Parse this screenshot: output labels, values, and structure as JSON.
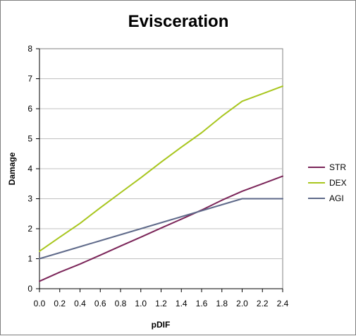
{
  "chart_data": {
    "type": "line",
    "title": "Evisceration",
    "xlabel": "pDIF",
    "ylabel": "Damage",
    "xlim": [
      0.0,
      2.4
    ],
    "ylim": [
      0,
      8
    ],
    "x_ticks": [
      "0.0",
      "0.2",
      "0.4",
      "0.6",
      "0.8",
      "1.0",
      "1.2",
      "1.4",
      "1.6",
      "1.8",
      "2.0",
      "2.2",
      "2.4"
    ],
    "y_ticks": [
      "0",
      "1",
      "2",
      "3",
      "4",
      "5",
      "6",
      "7",
      "8"
    ],
    "x": [
      0.0,
      0.2,
      0.4,
      0.6,
      0.8,
      1.0,
      1.2,
      1.4,
      1.6,
      1.8,
      2.0,
      2.2,
      2.4
    ],
    "grid": "horizontal",
    "legend_position": "right",
    "series": [
      {
        "name": "STR",
        "color": "#7b2559",
        "values": [
          0.25,
          0.55,
          0.82,
          1.12,
          1.42,
          1.72,
          2.02,
          2.32,
          2.62,
          2.95,
          3.25,
          3.5,
          3.75
        ]
      },
      {
        "name": "DEX",
        "color": "#a8c61e",
        "values": [
          1.25,
          1.72,
          2.18,
          2.7,
          3.2,
          3.7,
          4.22,
          4.72,
          5.2,
          5.75,
          6.25,
          6.5,
          6.75
        ]
      },
      {
        "name": "AGI",
        "color": "#5f6a8a",
        "values": [
          1.0,
          1.2,
          1.4,
          1.6,
          1.8,
          2.0,
          2.2,
          2.4,
          2.6,
          2.8,
          3.0,
          3.0,
          3.0
        ]
      }
    ]
  }
}
